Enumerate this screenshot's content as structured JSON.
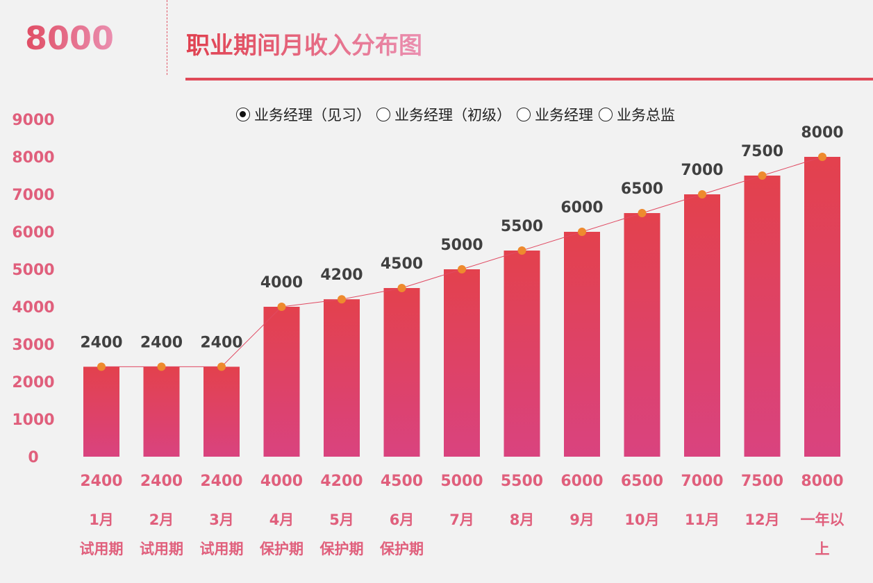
{
  "header": {
    "big_value": "8000",
    "title": "职业期间月收入分布图"
  },
  "legend": [
    {
      "label": "业务经理（见习）",
      "selected": true
    },
    {
      "label": "业务经理（初级）",
      "selected": false
    },
    {
      "label": "业务经理",
      "selected": false
    },
    {
      "label": "业务总监",
      "selected": false
    }
  ],
  "colors": {
    "bar_top": "#e3414d",
    "bar_bottom": "#d9437f",
    "line": "#e04a62",
    "marker": "#ee8a2e",
    "axis_text": "#e05f7c",
    "data_label": "#404040"
  },
  "chart_data": {
    "type": "bar",
    "categories": [
      "1月",
      "2月",
      "3月",
      "4月",
      "5月",
      "6月",
      "7月",
      "8月",
      "9月",
      "10月",
      "11月",
      "12月",
      "一年以上"
    ],
    "phases": [
      "试用期",
      "试用期",
      "试用期",
      "保护期",
      "保护期",
      "保护期",
      "",
      "",
      "",
      "",
      "",
      "",
      ""
    ],
    "values": [
      2400,
      2400,
      2400,
      4000,
      4200,
      4500,
      5000,
      5500,
      6000,
      6500,
      7000,
      7500,
      8000
    ],
    "line_overlay": true,
    "ylim": [
      0,
      9000
    ],
    "yticks": [
      0,
      1000,
      2000,
      3000,
      4000,
      5000,
      6000,
      7000,
      8000,
      9000
    ],
    "grid": false
  }
}
